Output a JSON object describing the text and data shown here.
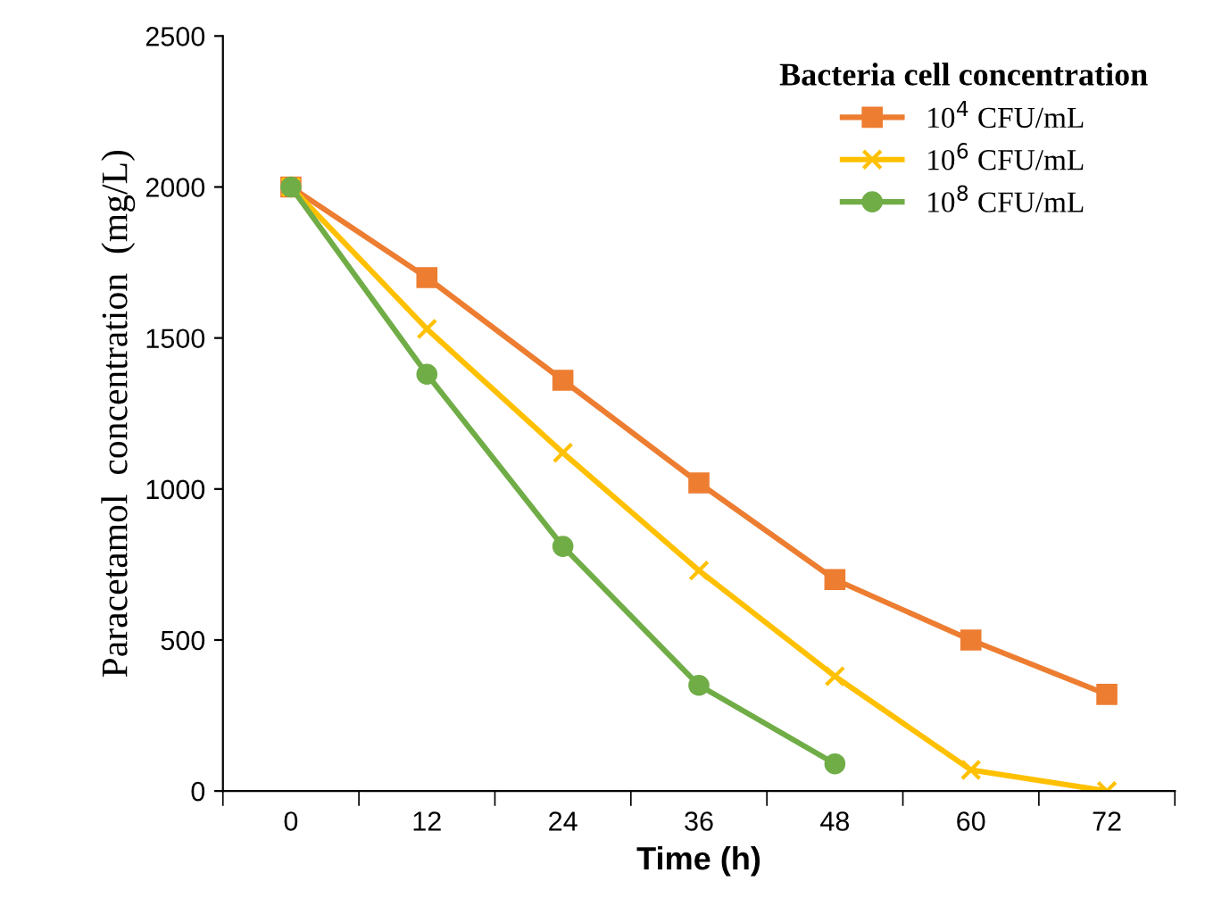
{
  "chart_data": {
    "type": "line",
    "xlabel": "Time (h)",
    "ylabel": "Paracetamol  concentration  (mg/L)",
    "legend_title": "Bacteria cell concentration",
    "categories": [
      "0",
      "12",
      "24",
      "36",
      "48",
      "60",
      "72"
    ],
    "series": [
      {
        "name": "10$^{4}$ CFU/mL",
        "color": "#ed7d31",
        "marker": "square",
        "values": [
          2000,
          1700,
          1360,
          1020,
          700,
          500,
          320
        ]
      },
      {
        "name": "10$^{6}$ CFU/mL",
        "color": "#ffc000",
        "marker": "cross",
        "values": [
          2000,
          1530,
          1120,
          730,
          380,
          70,
          0
        ]
      },
      {
        "name": "10$^{8}$ CFU/mL",
        "color": "#70ad47",
        "marker": "circle",
        "values": [
          2000,
          1380,
          810,
          350,
          90,
          null,
          null
        ]
      }
    ],
    "ylim": [
      0,
      2500
    ],
    "yticks": [
      0,
      500,
      1000,
      1500,
      2000,
      2500
    ],
    "grid": false,
    "legend": "top right",
    "line_style": "solid"
  }
}
